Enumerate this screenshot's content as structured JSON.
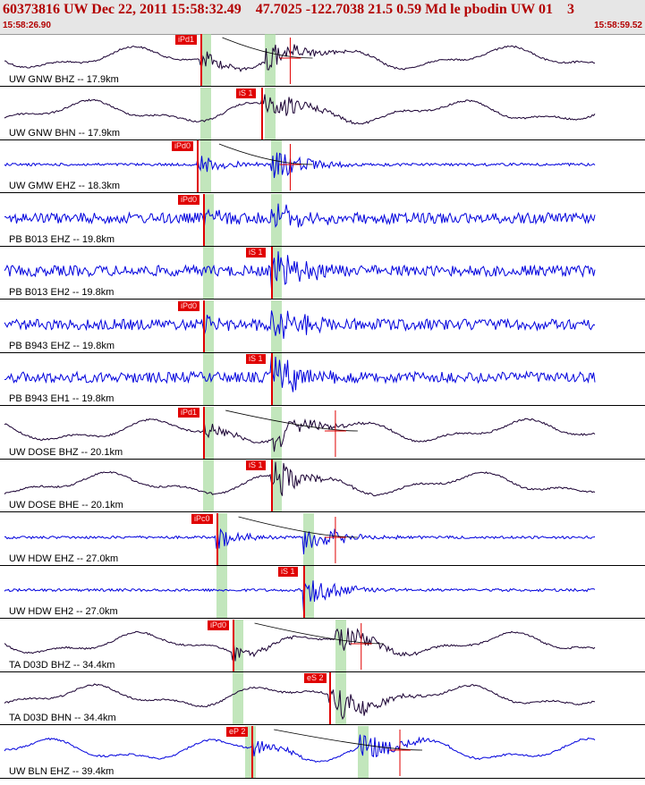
{
  "header": {
    "title": "60373816 UW Dec 22, 2011 15:58:32.49    47.7025 -122.7038 21.5 0.59 Md le pbodin UW 01    3",
    "time_start": "15:58:26.90",
    "time_end": "15:58:59.52"
  },
  "colors": {
    "header_bg": "#e6e6e6",
    "title_red": "#b30000",
    "pick_red": "#e00000",
    "band_green": "#a8dca0",
    "trace_blue": "#0000dd",
    "trace_dark": "#1a0033"
  },
  "tracks": [
    {
      "label": "UW GNW BHZ -- 17.9km",
      "pick": "iPd1",
      "pick_pos": 0.31,
      "band": 0.31,
      "band2": 0.41,
      "color": "dark",
      "coda": 0.45,
      "style": "long"
    },
    {
      "label": "UW GNW BHN -- 17.9km",
      "pick": "iS 1",
      "pick_pos": 0.405,
      "band": 0.31,
      "band2": 0.41,
      "color": "dark",
      "coda": null,
      "style": "long"
    },
    {
      "label": "UW GMW EHZ -- 18.3km",
      "pick": "iPd0",
      "pick_pos": 0.305,
      "band": 0.31,
      "band2": 0.42,
      "color": "blue",
      "coda": 0.45,
      "style": "short"
    },
    {
      "label": "PB B013 EHZ -- 19.8km",
      "pick": "iPd0",
      "pick_pos": 0.315,
      "band": 0.315,
      "band2": 0.42,
      "color": "blue",
      "coda": null,
      "style": "noise"
    },
    {
      "label": "PB B013 EH2 -- 19.8km",
      "pick": "iS 1",
      "pick_pos": 0.42,
      "band": 0.315,
      "band2": 0.42,
      "color": "blue",
      "coda": null,
      "style": "noise"
    },
    {
      "label": "PB B943 EHZ -- 19.8km",
      "pick": "iPd0",
      "pick_pos": 0.315,
      "band": 0.315,
      "band2": 0.42,
      "color": "blue",
      "coda": null,
      "style": "noise"
    },
    {
      "label": "PB B943 EH1 -- 19.8km",
      "pick": "iS 1",
      "pick_pos": 0.42,
      "band": 0.315,
      "band2": 0.42,
      "color": "blue",
      "coda": null,
      "style": "noise"
    },
    {
      "label": "UW DOSE BHZ -- 20.1km",
      "pick": "iPd1",
      "pick_pos": 0.315,
      "band": 0.315,
      "band2": 0.42,
      "color": "dark",
      "coda": 0.52,
      "style": "long"
    },
    {
      "label": "UW DOSE BHE -- 20.1km",
      "pick": "iS 1",
      "pick_pos": 0.42,
      "band": 0.315,
      "band2": 0.42,
      "color": "dark",
      "coda": null,
      "style": "long"
    },
    {
      "label": "UW HDW EHZ -- 27.0km",
      "pick": "iPc0",
      "pick_pos": 0.335,
      "band": 0.335,
      "band2": 0.47,
      "color": "blue",
      "coda": 0.52,
      "style": "short"
    },
    {
      "label": "UW HDW EH2 -- 27.0km",
      "pick": "iS 1",
      "pick_pos": 0.47,
      "band": 0.335,
      "band2": 0.47,
      "color": "blue",
      "coda": null,
      "style": "short"
    },
    {
      "label": "TA D03D BHZ -- 34.4km",
      "pick": "iPd0",
      "pick_pos": 0.36,
      "band": 0.36,
      "band2": 0.52,
      "color": "dark",
      "coda": 0.56,
      "style": "long"
    },
    {
      "label": "TA D03D BHN -- 34.4km",
      "pick": "eS 2",
      "pick_pos": 0.51,
      "band": 0.36,
      "band2": 0.52,
      "color": "dark",
      "coda": null,
      "style": "long"
    },
    {
      "label": "UW BLN EHZ -- 39.4km",
      "pick": "eP 2",
      "pick_pos": 0.39,
      "band": 0.38,
      "band2": 0.555,
      "color": "blue",
      "coda": 0.62,
      "style": "long"
    }
  ]
}
